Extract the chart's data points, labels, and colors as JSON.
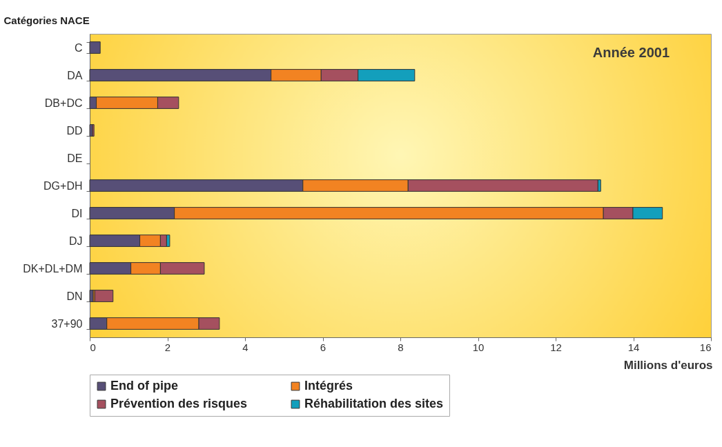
{
  "chart_data": {
    "type": "bar",
    "orientation": "horizontal",
    "stacked": true,
    "title": "Année 2001",
    "xlabel": "Millions d'euros",
    "ylabel": "Catégories NACE",
    "categories": [
      "C",
      "DA",
      "DB+DC",
      "DD",
      "DE",
      "DG+DH",
      "DI",
      "DJ",
      "DK+DL+DM",
      "DN",
      "37+90"
    ],
    "series": [
      {
        "name": "End of pipe",
        "color": "#574f77",
        "values": [
          0.27,
          4.67,
          0.17,
          0.07,
          null,
          5.49,
          2.18,
          1.29,
          1.06,
          0.09,
          0.44
        ]
      },
      {
        "name": "Intégrés",
        "color": "#f28322",
        "values": [
          null,
          1.29,
          1.58,
          null,
          null,
          2.71,
          11.05,
          0.53,
          0.76,
          0.04,
          2.37
        ]
      },
      {
        "name": "Prévention des risques",
        "color": "#a5505f",
        "values": [
          null,
          0.95,
          0.54,
          0.04,
          null,
          4.89,
          0.76,
          0.16,
          1.13,
          0.47,
          0.53
        ]
      },
      {
        "name": "Réhabilitation des sites",
        "color": "#139fbc",
        "values": [
          null,
          1.46,
          null,
          null,
          null,
          0.07,
          0.76,
          0.08,
          null,
          null,
          null
        ]
      }
    ],
    "xlim": [
      0,
      16
    ],
    "xticks": [
      0,
      2,
      4,
      6,
      8,
      10,
      12,
      14,
      16
    ],
    "grid": false,
    "legend": "bottom"
  }
}
